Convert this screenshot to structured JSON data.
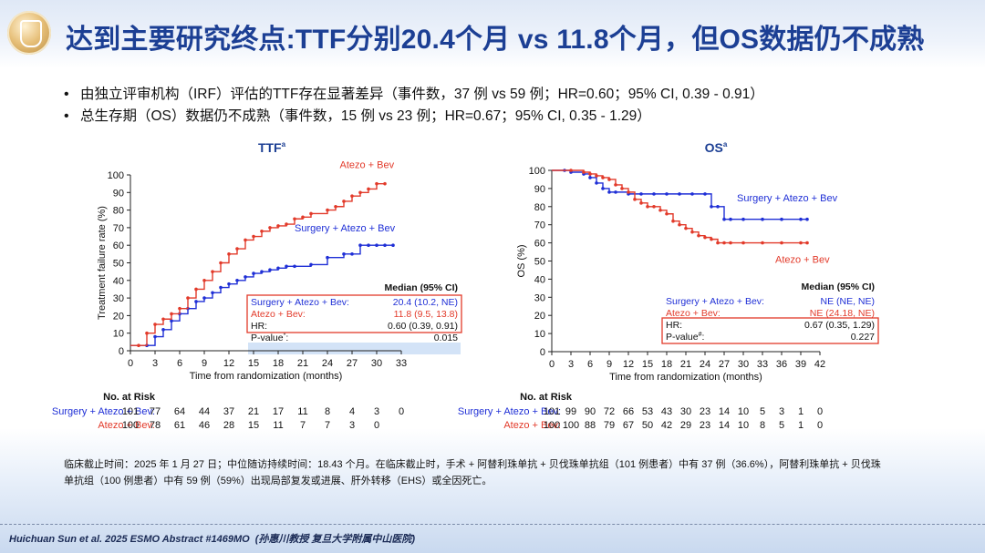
{
  "title": "达到主要研究终点:TTF分别20.4个月 vs 11.8个月，但OS数据仍不成熟",
  "bullets": [
    "由独立评审机构（IRF）评估的TTF存在显著差异（事件数，37 例 vs 59 例；HR=0.60；95% CI, 0.39 - 0.91）",
    "总生存期（OS）数据仍不成熟（事件数，15 例 vs 23 例；HR=0.67；95% CI, 0.35 - 1.29）"
  ],
  "colors": {
    "title": "#1c3f94",
    "surgery": "#1f2fd6",
    "atezo": "#e23a2a",
    "highlight": "#d3e3f7"
  },
  "chart_data": [
    {
      "type": "line",
      "title": "TTF",
      "title_superscript": "a",
      "xlabel": "Time from randomization (months)",
      "ylabel": "Treatment failure rate (%)",
      "xlim": [
        0,
        33
      ],
      "ylim": [
        0,
        100
      ],
      "xticks": [
        0,
        3,
        6,
        9,
        12,
        15,
        18,
        21,
        24,
        27,
        30,
        33
      ],
      "yticks": [
        0,
        10,
        20,
        30,
        40,
        50,
        60,
        70,
        80,
        90,
        100
      ],
      "series": [
        {
          "name": "Surgery + Atezo + Bev",
          "color": "#1f2fd6",
          "x": [
            0,
            2,
            3,
            4,
            5,
            6,
            7,
            8,
            9,
            10,
            11,
            12,
            13,
            14,
            15,
            16,
            17,
            18,
            19,
            20,
            22,
            24,
            26,
            27,
            28,
            29,
            30,
            31,
            32
          ],
          "y": [
            3,
            3,
            8,
            12,
            17,
            21,
            24,
            28,
            30,
            33,
            36,
            38,
            40,
            42,
            44,
            45,
            46,
            47,
            48,
            48,
            49,
            53,
            55,
            55,
            60,
            60,
            60,
            60,
            60
          ]
        },
        {
          "name": "Atezo + Bev",
          "color": "#e23a2a",
          "x": [
            0,
            1,
            2,
            3,
            4,
            5,
            6,
            7,
            8,
            9,
            10,
            11,
            12,
            13,
            14,
            15,
            16,
            17,
            18,
            19,
            20,
            21,
            22,
            24,
            25,
            26,
            27,
            28,
            29,
            30,
            31
          ],
          "y": [
            3,
            3,
            10,
            15,
            18,
            21,
            24,
            30,
            35,
            40,
            45,
            50,
            55,
            58,
            63,
            65,
            68,
            70,
            71,
            72,
            75,
            76,
            78,
            80,
            82,
            85,
            88,
            90,
            92,
            95,
            95
          ]
        }
      ],
      "series_labels": [
        {
          "text": "Atezo + Bev",
          "color": "#e23a2a",
          "x": 25.5,
          "y": 104
        },
        {
          "text": "Surgery + Atezo + Bev",
          "color": "#1f2fd6",
          "x": 20,
          "y": 68
        }
      ],
      "stats": {
        "header": "Median (95% CI)",
        "rows": [
          {
            "label": "Surgery + Atezo + Bev:",
            "value": "20.4 (10.2, NE)",
            "color": "#1f2fd6"
          },
          {
            "label": "Atezo + Bev:",
            "value": "11.8 (9.5, 13.8)",
            "color": "#e23a2a"
          },
          {
            "label": "HR:",
            "value": "0.60 (0.39, 0.91)",
            "color": "#111111"
          },
          {
            "label": "P-value",
            "label_sup": "*",
            "value": "0.015",
            "color": "#111111"
          }
        ]
      },
      "risk_table": {
        "title": "No. at Risk",
        "rows": [
          {
            "label": "Surgery + Atezo + Bev:",
            "color": "#1f2fd6",
            "values": [
              "101",
              "77",
              "64",
              "44",
              "37",
              "21",
              "17",
              "11",
              "8",
              "4",
              "3",
              "0"
            ]
          },
          {
            "label": "Atezo + Bev:",
            "color": "#e23a2a",
            "values": [
              "100",
              "78",
              "61",
              "46",
              "28",
              "15",
              "11",
              "7",
              "7",
              "3",
              "0"
            ]
          }
        ]
      }
    },
    {
      "type": "line",
      "title": "OS",
      "title_superscript": "a",
      "xlabel": "Time from randomization (months)",
      "ylabel": "OS (%)",
      "xlim": [
        0,
        42
      ],
      "ylim": [
        0,
        100
      ],
      "xticks": [
        0,
        3,
        6,
        9,
        12,
        15,
        18,
        21,
        24,
        27,
        30,
        33,
        36,
        39,
        42
      ],
      "yticks": [
        0,
        10,
        20,
        30,
        40,
        50,
        60,
        70,
        80,
        90,
        100
      ],
      "series": [
        {
          "name": "Surgery + Atezo + Bev",
          "color": "#1f2fd6",
          "x": [
            0,
            2,
            3,
            5,
            6,
            7,
            8,
            9,
            10,
            12,
            14,
            16,
            18,
            20,
            22,
            24,
            25,
            26,
            27,
            28,
            30,
            33,
            36,
            39,
            40
          ],
          "y": [
            100,
            100,
            99,
            98,
            96,
            93,
            90,
            88,
            88,
            87,
            87,
            87,
            87,
            87,
            87,
            87,
            80,
            80,
            73,
            73,
            73,
            73,
            73,
            73,
            73
          ]
        },
        {
          "name": "Atezo + Bev",
          "color": "#e23a2a",
          "x": [
            0,
            3,
            5,
            6,
            7,
            8,
            9,
            10,
            11,
            12,
            13,
            14,
            15,
            16,
            17,
            18,
            19,
            20,
            21,
            22,
            23,
            24,
            25,
            26,
            27,
            28,
            30,
            33,
            36,
            39,
            40
          ],
          "y": [
            100,
            100,
            99,
            98,
            97,
            96,
            95,
            92,
            90,
            88,
            84,
            82,
            80,
            80,
            78,
            76,
            72,
            70,
            68,
            66,
            64,
            63,
            62,
            60,
            60,
            60,
            60,
            60,
            60,
            60,
            60
          ]
        }
      ],
      "series_labels": [
        {
          "text": "Surgery + Atezo + Bev",
          "color": "#1f2fd6",
          "x": 29,
          "y": 83
        },
        {
          "text": "Atezo + Bev",
          "color": "#e23a2a",
          "x": 35,
          "y": 49
        }
      ],
      "stats": {
        "header": "Median (95% CI)",
        "rows": [
          {
            "label": "Surgery + Atezo + Bev:",
            "value": "NE (NE, NE)",
            "color": "#1f2fd6"
          },
          {
            "label": "Atezo + Bev:",
            "value": "NE (24.18, NE)",
            "color": "#e23a2a"
          },
          {
            "label": "HR:",
            "value": "0.67 (0.35, 1.29)",
            "color": "#111111"
          },
          {
            "label": "P-value",
            "label_sup": "#",
            "value": "0.227",
            "color": "#111111"
          }
        ]
      },
      "risk_table": {
        "title": "No. at Risk",
        "rows": [
          {
            "label": "Surgery + Atezo + Bev:",
            "color": "#1f2fd6",
            "values": [
              "101",
              "99",
              "90",
              "72",
              "66",
              "53",
              "43",
              "30",
              "23",
              "14",
              "10",
              "5",
              "3",
              "1",
              "0"
            ]
          },
          {
            "label": "Atezo + Bev:",
            "color": "#e23a2a",
            "values": [
              "100",
              "100",
              "88",
              "79",
              "67",
              "50",
              "42",
              "29",
              "23",
              "14",
              "10",
              "8",
              "5",
              "1",
              "0"
            ]
          }
        ]
      }
    }
  ],
  "footnote": "临床截止时间：2025 年 1 月 27 日；中位随访持续时间：18.43 个月。在临床截止时，手术 + 阿替利珠单抗 + 贝伐珠单抗组（101 例患者）中有 37 例（36.6%），阿替利珠单抗 + 贝伐珠单抗组（100 例患者）中有 59 例（59%）出现局部复发或进展、肝外转移（EHS）或全因死亡。",
  "citation": "Huichuan Sun et al. 2025 ESMO Abstract #1469MO",
  "citation_cn": "(孙惠川教授 复旦大学附属中山医院)"
}
